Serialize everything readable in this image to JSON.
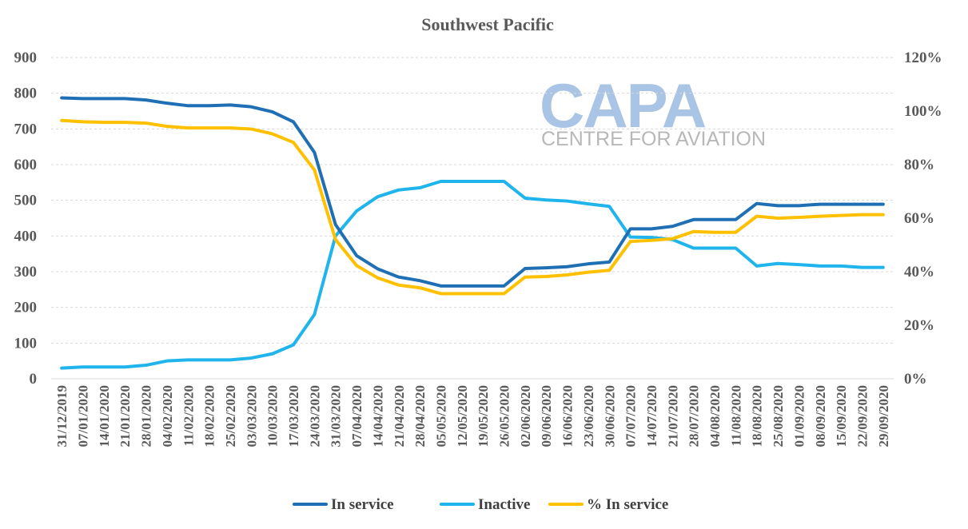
{
  "chart_data": {
    "type": "line",
    "title": "Southwest Pacific",
    "x": [
      "31/12/2019",
      "07/01/2020",
      "14/01/2020",
      "21/01/2020",
      "28/01/2020",
      "04/02/2020",
      "11/02/2020",
      "18/02/2020",
      "25/02/2020",
      "03/03/2020",
      "10/03/2020",
      "17/03/2020",
      "24/03/2020",
      "31/03/2020",
      "07/04/2020",
      "14/04/2020",
      "21/04/2020",
      "28/04/2020",
      "05/05/2020",
      "12/05/2020",
      "19/05/2020",
      "26/05/2020",
      "02/06/2020",
      "09/06/2020",
      "16/06/2020",
      "23/06/2020",
      "30/06/2020",
      "07/07/2020",
      "14/07/2020",
      "21/07/2020",
      "28/07/2020",
      "04/08/2020",
      "11/08/2020",
      "18/08/2020",
      "25/08/2020",
      "01/09/2020",
      "08/09/2020",
      "15/09/2020",
      "22/09/2020",
      "29/09/2020"
    ],
    "left_axis": {
      "ylim": [
        0,
        900
      ],
      "ticks": [
        "0",
        "100",
        "200",
        "300",
        "400",
        "500",
        "600",
        "700",
        "800",
        "900"
      ]
    },
    "right_axis": {
      "ylim": [
        0,
        1.2
      ],
      "ticks": [
        "0%",
        "20%",
        "40%",
        "60%",
        "80%",
        "100%",
        "120%"
      ]
    },
    "series": [
      {
        "name": "In service",
        "axis": "left",
        "color": "#1f6fb5",
        "values": [
          787,
          785,
          785,
          785,
          781,
          772,
          765,
          765,
          767,
          762,
          748,
          720,
          634,
          432,
          345,
          308,
          285,
          275,
          260,
          260,
          260,
          260,
          309,
          311,
          314,
          322,
          327,
          420,
          420,
          427,
          446,
          446,
          446,
          491,
          485,
          485,
          489,
          489,
          489,
          489
        ]
      },
      {
        "name": "Inactive",
        "axis": "left",
        "color": "#1fb4ec",
        "values": [
          30,
          33,
          33,
          33,
          38,
          50,
          53,
          53,
          53,
          58,
          70,
          95,
          180,
          400,
          470,
          510,
          529,
          535,
          553,
          553,
          553,
          553,
          506,
          501,
          498,
          490,
          483,
          397,
          396,
          390,
          366,
          366,
          366,
          316,
          323,
          320,
          316,
          316,
          312,
          312
        ]
      },
      {
        "name": "% In service",
        "axis": "right",
        "color": "#ffc000",
        "values": [
          0.965,
          0.96,
          0.958,
          0.958,
          0.955,
          0.943,
          0.937,
          0.937,
          0.937,
          0.933,
          0.915,
          0.883,
          0.78,
          0.52,
          0.423,
          0.377,
          0.35,
          0.34,
          0.318,
          0.318,
          0.318,
          0.318,
          0.38,
          0.382,
          0.388,
          0.398,
          0.405,
          0.513,
          0.517,
          0.523,
          0.55,
          0.547,
          0.547,
          0.607,
          0.6,
          0.603,
          0.607,
          0.61,
          0.613,
          0.613
        ]
      }
    ],
    "grid": true,
    "legend_position": "bottom"
  },
  "watermark": {
    "big": "CAPA",
    "small": "CENTRE FOR AVIATION"
  }
}
